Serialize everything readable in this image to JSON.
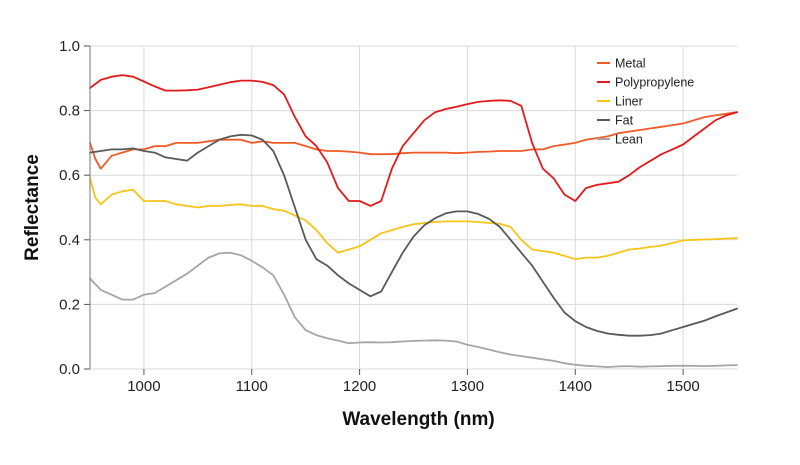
{
  "chart_data": {
    "type": "line",
    "xlabel": "Wavelength (nm)",
    "ylabel": "Reflectance",
    "xlim": [
      950,
      1550
    ],
    "ylim": [
      0,
      1.0
    ],
    "x_ticks": [
      1000,
      1100,
      1200,
      1300,
      1400,
      1500
    ],
    "y_ticks": [
      0.0,
      0.2,
      0.4,
      0.6,
      0.8,
      1.0
    ],
    "x_tick_labels": [
      "1000",
      "1100",
      "1200",
      "1300",
      "1400",
      "1500"
    ],
    "y_tick_labels": [
      "0.0",
      "0.2",
      "0.4",
      "0.6",
      "0.8",
      "1.0"
    ],
    "grid": true,
    "legend_position": "top-right",
    "series": [
      {
        "name": "Metal",
        "color": "#f05a28",
        "points": [
          [
            950,
            0.7
          ],
          [
            955,
            0.65
          ],
          [
            960,
            0.62
          ],
          [
            970,
            0.66
          ],
          [
            980,
            0.67
          ],
          [
            990,
            0.68
          ],
          [
            1000,
            0.68
          ],
          [
            1010,
            0.69
          ],
          [
            1020,
            0.69
          ],
          [
            1030,
            0.7
          ],
          [
            1040,
            0.7
          ],
          [
            1050,
            0.7
          ],
          [
            1060,
            0.705
          ],
          [
            1070,
            0.71
          ],
          [
            1080,
            0.71
          ],
          [
            1090,
            0.71
          ],
          [
            1100,
            0.7
          ],
          [
            1110,
            0.705
          ],
          [
            1120,
            0.7
          ],
          [
            1130,
            0.7
          ],
          [
            1140,
            0.7
          ],
          [
            1150,
            0.69
          ],
          [
            1160,
            0.68
          ],
          [
            1170,
            0.675
          ],
          [
            1180,
            0.675
          ],
          [
            1190,
            0.673
          ],
          [
            1200,
            0.67
          ],
          [
            1210,
            0.665
          ],
          [
            1220,
            0.665
          ],
          [
            1230,
            0.665
          ],
          [
            1240,
            0.668
          ],
          [
            1250,
            0.67
          ],
          [
            1260,
            0.67
          ],
          [
            1270,
            0.67
          ],
          [
            1280,
            0.67
          ],
          [
            1290,
            0.668
          ],
          [
            1300,
            0.67
          ],
          [
            1310,
            0.672
          ],
          [
            1320,
            0.673
          ],
          [
            1330,
            0.675
          ],
          [
            1340,
            0.675
          ],
          [
            1350,
            0.675
          ],
          [
            1360,
            0.68
          ],
          [
            1370,
            0.68
          ],
          [
            1380,
            0.69
          ],
          [
            1390,
            0.695
          ],
          [
            1400,
            0.7
          ],
          [
            1410,
            0.71
          ],
          [
            1420,
            0.715
          ],
          [
            1430,
            0.72
          ],
          [
            1440,
            0.73
          ],
          [
            1450,
            0.735
          ],
          [
            1460,
            0.74
          ],
          [
            1470,
            0.745
          ],
          [
            1480,
            0.75
          ],
          [
            1490,
            0.755
          ],
          [
            1500,
            0.76
          ],
          [
            1510,
            0.77
          ],
          [
            1520,
            0.78
          ],
          [
            1530,
            0.785
          ],
          [
            1540,
            0.79
          ],
          [
            1550,
            0.795
          ]
        ]
      },
      {
        "name": "Polypropylene",
        "color": "#e31a1c",
        "points": [
          [
            950,
            0.87
          ],
          [
            960,
            0.895
          ],
          [
            970,
            0.905
          ],
          [
            980,
            0.91
          ],
          [
            990,
            0.905
          ],
          [
            1000,
            0.89
          ],
          [
            1010,
            0.875
          ],
          [
            1020,
            0.862
          ],
          [
            1030,
            0.862
          ],
          [
            1040,
            0.863
          ],
          [
            1050,
            0.865
          ],
          [
            1060,
            0.872
          ],
          [
            1070,
            0.88
          ],
          [
            1080,
            0.888
          ],
          [
            1090,
            0.893
          ],
          [
            1100,
            0.893
          ],
          [
            1110,
            0.889
          ],
          [
            1120,
            0.879
          ],
          [
            1130,
            0.85
          ],
          [
            1140,
            0.78
          ],
          [
            1150,
            0.72
          ],
          [
            1160,
            0.69
          ],
          [
            1170,
            0.64
          ],
          [
            1180,
            0.56
          ],
          [
            1190,
            0.52
          ],
          [
            1200,
            0.52
          ],
          [
            1210,
            0.505
          ],
          [
            1220,
            0.52
          ],
          [
            1230,
            0.62
          ],
          [
            1240,
            0.69
          ],
          [
            1250,
            0.73
          ],
          [
            1260,
            0.77
          ],
          [
            1270,
            0.795
          ],
          [
            1280,
            0.805
          ],
          [
            1290,
            0.812
          ],
          [
            1300,
            0.82
          ],
          [
            1310,
            0.827
          ],
          [
            1320,
            0.83
          ],
          [
            1330,
            0.832
          ],
          [
            1340,
            0.83
          ],
          [
            1350,
            0.815
          ],
          [
            1360,
            0.7
          ],
          [
            1370,
            0.62
          ],
          [
            1380,
            0.59
          ],
          [
            1390,
            0.54
          ],
          [
            1400,
            0.52
          ],
          [
            1410,
            0.56
          ],
          [
            1420,
            0.57
          ],
          [
            1430,
            0.575
          ],
          [
            1440,
            0.58
          ],
          [
            1450,
            0.6
          ],
          [
            1460,
            0.625
          ],
          [
            1470,
            0.645
          ],
          [
            1480,
            0.665
          ],
          [
            1490,
            0.68
          ],
          [
            1500,
            0.695
          ],
          [
            1510,
            0.72
          ],
          [
            1520,
            0.745
          ],
          [
            1530,
            0.77
          ],
          [
            1540,
            0.785
          ],
          [
            1550,
            0.795
          ]
        ]
      },
      {
        "name": "Liner",
        "color": "#f5c518",
        "points": [
          [
            950,
            0.59
          ],
          [
            955,
            0.53
          ],
          [
            960,
            0.51
          ],
          [
            970,
            0.54
          ],
          [
            980,
            0.55
          ],
          [
            990,
            0.555
          ],
          [
            1000,
            0.52
          ],
          [
            1010,
            0.52
          ],
          [
            1020,
            0.52
          ],
          [
            1030,
            0.51
          ],
          [
            1040,
            0.505
          ],
          [
            1050,
            0.5
          ],
          [
            1060,
            0.505
          ],
          [
            1070,
            0.505
          ],
          [
            1080,
            0.508
          ],
          [
            1090,
            0.51
          ],
          [
            1100,
            0.505
          ],
          [
            1110,
            0.505
          ],
          [
            1120,
            0.495
          ],
          [
            1130,
            0.49
          ],
          [
            1140,
            0.475
          ],
          [
            1150,
            0.46
          ],
          [
            1160,
            0.43
          ],
          [
            1170,
            0.39
          ],
          [
            1180,
            0.36
          ],
          [
            1190,
            0.37
          ],
          [
            1200,
            0.38
          ],
          [
            1210,
            0.4
          ],
          [
            1220,
            0.42
          ],
          [
            1230,
            0.43
          ],
          [
            1240,
            0.44
          ],
          [
            1250,
            0.448
          ],
          [
            1260,
            0.452
          ],
          [
            1270,
            0.455
          ],
          [
            1280,
            0.457
          ],
          [
            1290,
            0.457
          ],
          [
            1300,
            0.457
          ],
          [
            1310,
            0.455
          ],
          [
            1320,
            0.452
          ],
          [
            1330,
            0.45
          ],
          [
            1340,
            0.44
          ],
          [
            1350,
            0.4
          ],
          [
            1360,
            0.37
          ],
          [
            1370,
            0.365
          ],
          [
            1380,
            0.36
          ],
          [
            1390,
            0.35
          ],
          [
            1400,
            0.34
          ],
          [
            1410,
            0.345
          ],
          [
            1420,
            0.345
          ],
          [
            1430,
            0.35
          ],
          [
            1440,
            0.36
          ],
          [
            1450,
            0.37
          ],
          [
            1460,
            0.373
          ],
          [
            1470,
            0.378
          ],
          [
            1480,
            0.382
          ],
          [
            1490,
            0.39
          ],
          [
            1500,
            0.398
          ],
          [
            1510,
            0.4
          ],
          [
            1520,
            0.401
          ],
          [
            1530,
            0.402
          ],
          [
            1540,
            0.404
          ],
          [
            1550,
            0.405
          ]
        ]
      },
      {
        "name": "Fat",
        "color": "#595959",
        "points": [
          [
            950,
            0.67
          ],
          [
            960,
            0.675
          ],
          [
            970,
            0.68
          ],
          [
            980,
            0.68
          ],
          [
            990,
            0.683
          ],
          [
            1000,
            0.675
          ],
          [
            1010,
            0.67
          ],
          [
            1020,
            0.655
          ],
          [
            1030,
            0.65
          ],
          [
            1040,
            0.645
          ],
          [
            1050,
            0.67
          ],
          [
            1060,
            0.69
          ],
          [
            1070,
            0.71
          ],
          [
            1080,
            0.72
          ],
          [
            1090,
            0.725
          ],
          [
            1100,
            0.723
          ],
          [
            1110,
            0.71
          ],
          [
            1120,
            0.675
          ],
          [
            1130,
            0.6
          ],
          [
            1140,
            0.5
          ],
          [
            1150,
            0.4
          ],
          [
            1160,
            0.34
          ],
          [
            1170,
            0.32
          ],
          [
            1180,
            0.29
          ],
          [
            1190,
            0.265
          ],
          [
            1200,
            0.245
          ],
          [
            1210,
            0.225
          ],
          [
            1220,
            0.24
          ],
          [
            1230,
            0.3
          ],
          [
            1240,
            0.36
          ],
          [
            1250,
            0.41
          ],
          [
            1260,
            0.445
          ],
          [
            1270,
            0.467
          ],
          [
            1280,
            0.482
          ],
          [
            1290,
            0.488
          ],
          [
            1300,
            0.488
          ],
          [
            1310,
            0.48
          ],
          [
            1320,
            0.465
          ],
          [
            1330,
            0.44
          ],
          [
            1340,
            0.4
          ],
          [
            1350,
            0.36
          ],
          [
            1360,
            0.32
          ],
          [
            1370,
            0.27
          ],
          [
            1380,
            0.22
          ],
          [
            1390,
            0.175
          ],
          [
            1400,
            0.148
          ],
          [
            1410,
            0.13
          ],
          [
            1420,
            0.118
          ],
          [
            1430,
            0.11
          ],
          [
            1440,
            0.106
          ],
          [
            1450,
            0.103
          ],
          [
            1460,
            0.103
          ],
          [
            1470,
            0.105
          ],
          [
            1480,
            0.11
          ],
          [
            1490,
            0.12
          ],
          [
            1500,
            0.13
          ],
          [
            1510,
            0.14
          ],
          [
            1520,
            0.15
          ],
          [
            1530,
            0.163
          ],
          [
            1540,
            0.175
          ],
          [
            1550,
            0.187
          ]
        ]
      },
      {
        "name": "Lean",
        "color": "#a6a6a6",
        "points": [
          [
            950,
            0.28
          ],
          [
            960,
            0.245
          ],
          [
            970,
            0.23
          ],
          [
            980,
            0.215
          ],
          [
            990,
            0.215
          ],
          [
            1000,
            0.23
          ],
          [
            1010,
            0.235
          ],
          [
            1020,
            0.255
          ],
          [
            1030,
            0.275
          ],
          [
            1040,
            0.295
          ],
          [
            1050,
            0.32
          ],
          [
            1060,
            0.345
          ],
          [
            1070,
            0.358
          ],
          [
            1080,
            0.36
          ],
          [
            1090,
            0.352
          ],
          [
            1100,
            0.335
          ],
          [
            1110,
            0.315
          ],
          [
            1120,
            0.29
          ],
          [
            1130,
            0.23
          ],
          [
            1140,
            0.16
          ],
          [
            1150,
            0.12
          ],
          [
            1160,
            0.105
          ],
          [
            1170,
            0.095
          ],
          [
            1180,
            0.088
          ],
          [
            1190,
            0.08
          ],
          [
            1200,
            0.082
          ],
          [
            1210,
            0.083
          ],
          [
            1220,
            0.082
          ],
          [
            1230,
            0.083
          ],
          [
            1240,
            0.085
          ],
          [
            1250,
            0.087
          ],
          [
            1260,
            0.088
          ],
          [
            1270,
            0.089
          ],
          [
            1280,
            0.088
          ],
          [
            1290,
            0.085
          ],
          [
            1300,
            0.075
          ],
          [
            1310,
            0.068
          ],
          [
            1320,
            0.06
          ],
          [
            1330,
            0.052
          ],
          [
            1340,
            0.045
          ],
          [
            1350,
            0.04
          ],
          [
            1360,
            0.035
          ],
          [
            1370,
            0.03
          ],
          [
            1380,
            0.025
          ],
          [
            1390,
            0.018
          ],
          [
            1400,
            0.013
          ],
          [
            1410,
            0.01
          ],
          [
            1420,
            0.008
          ],
          [
            1430,
            0.006
          ],
          [
            1440,
            0.008
          ],
          [
            1450,
            0.009
          ],
          [
            1460,
            0.007
          ],
          [
            1470,
            0.008
          ],
          [
            1480,
            0.009
          ],
          [
            1490,
            0.01
          ],
          [
            1500,
            0.01
          ],
          [
            1510,
            0.01
          ],
          [
            1520,
            0.009
          ],
          [
            1530,
            0.01
          ],
          [
            1540,
            0.011
          ],
          [
            1550,
            0.012
          ]
        ]
      }
    ]
  }
}
